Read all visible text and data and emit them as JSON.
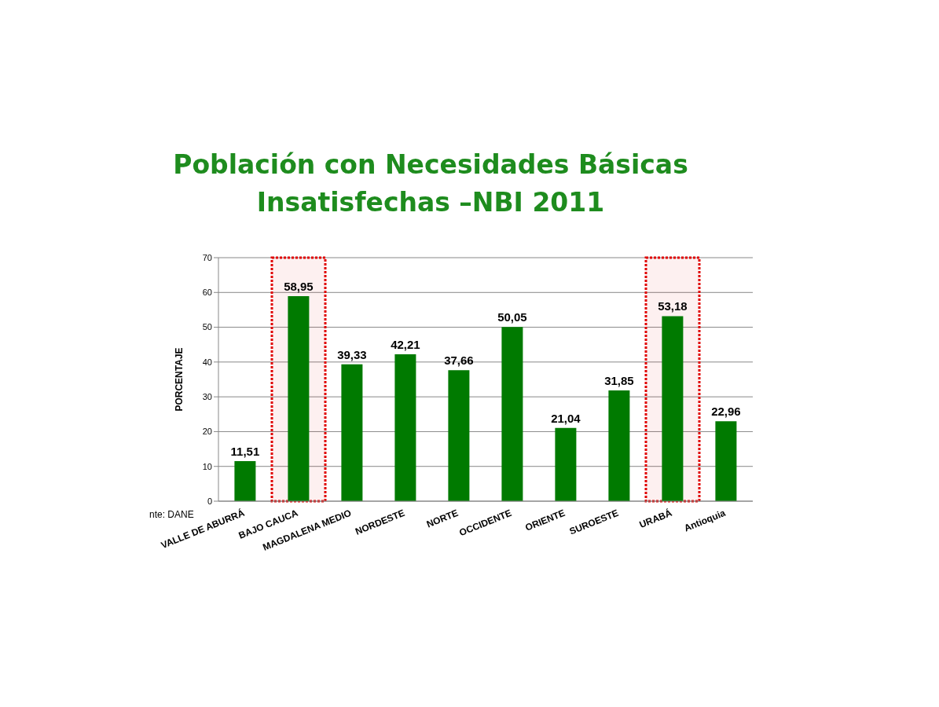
{
  "chart_data": {
    "type": "bar",
    "title": "Población con Necesidades Básicas\nInsatisfechas –NBI 2011",
    "ylabel": "PORCENTAJE",
    "categories": [
      "VALLE DE ABURRÁ",
      "BAJO CAUCA",
      "MAGDALENA MEDIO",
      "NORDESTE",
      "NORTE",
      "OCCIDENTE",
      "ORIENTE",
      "SUROESTE",
      "URABÁ",
      "Antioquia"
    ],
    "values": [
      11.51,
      58.95,
      39.33,
      42.21,
      37.66,
      50.05,
      21.04,
      31.85,
      53.18,
      22.96
    ],
    "value_labels": [
      "11,51",
      "58,95",
      "39,33",
      "42,21",
      "37,66",
      "50,05",
      "21,04",
      "31,85",
      "53,18",
      "22,96"
    ],
    "color": "#007a00",
    "ylim": [
      0,
      70
    ],
    "yticks": [
      0,
      10,
      20,
      30,
      40,
      50,
      60,
      70
    ],
    "grid": "y",
    "bands": [
      {
        "axis": "x",
        "from": "BAJO CAUCA",
        "to": "BAJO CAUCA",
        "color": "#e00000"
      },
      {
        "axis": "x",
        "from": "URABÁ",
        "to": "URABÁ",
        "color": "#e00000"
      }
    ],
    "annotations": [
      "nte: DANE"
    ]
  }
}
